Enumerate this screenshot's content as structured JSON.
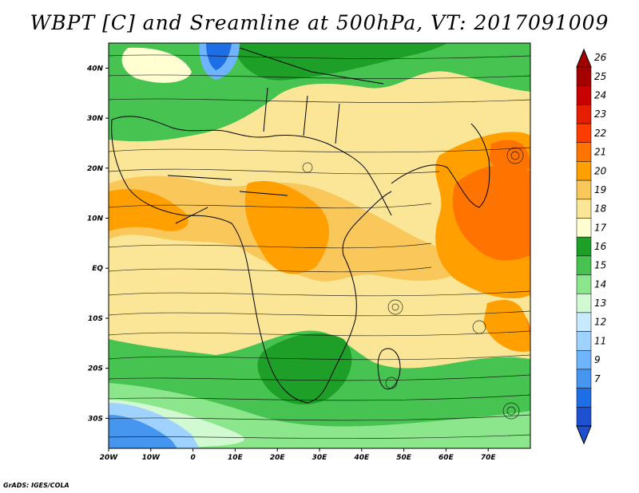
{
  "title": "WBPT [C] and Sreamline at 500hPa, VT: 2017091009",
  "credit": "GrADS: IGES/COLA",
  "map": {
    "lat_labels": [
      {
        "label": "40N",
        "lat": 40
      },
      {
        "label": "30N",
        "lat": 30
      },
      {
        "label": "20N",
        "lat": 20
      },
      {
        "label": "10N",
        "lat": 10
      },
      {
        "label": "EQ",
        "lat": 0
      },
      {
        "label": "10S",
        "lat": -10
      },
      {
        "label": "20S",
        "lat": -20
      },
      {
        "label": "30S",
        "lat": -30
      }
    ],
    "lon_labels": [
      {
        "label": "20W",
        "lon": -20
      },
      {
        "label": "10W",
        "lon": -10
      },
      {
        "label": "0",
        "lon": 0
      },
      {
        "label": "10E",
        "lon": 10
      },
      {
        "label": "20E",
        "lon": 20
      },
      {
        "label": "30E",
        "lon": 30
      },
      {
        "label": "40E",
        "lon": 40
      },
      {
        "label": "50E",
        "lon": 50
      },
      {
        "label": "60E",
        "lon": 60
      },
      {
        "label": "70E",
        "lon": 70
      }
    ]
  },
  "colorbar": {
    "labels": [
      "26",
      "25",
      "24",
      "23",
      "22",
      "21",
      "20",
      "19",
      "18",
      "17",
      "16",
      "15",
      "14",
      "13",
      "12",
      "11",
      "9",
      "7"
    ],
    "colors": [
      "#a50000",
      "#c80000",
      "#e61e00",
      "#ff3c00",
      "#ff7300",
      "#ffa000",
      "#fac85a",
      "#fae696",
      "#ffffd2",
      "#1ea028",
      "#46c350",
      "#8ce68c",
      "#d2fad2",
      "#c8eaff",
      "#a0d2ff",
      "#6eb4ff",
      "#4696f0",
      "#1e6ee6",
      "#1e50d2"
    ]
  }
}
